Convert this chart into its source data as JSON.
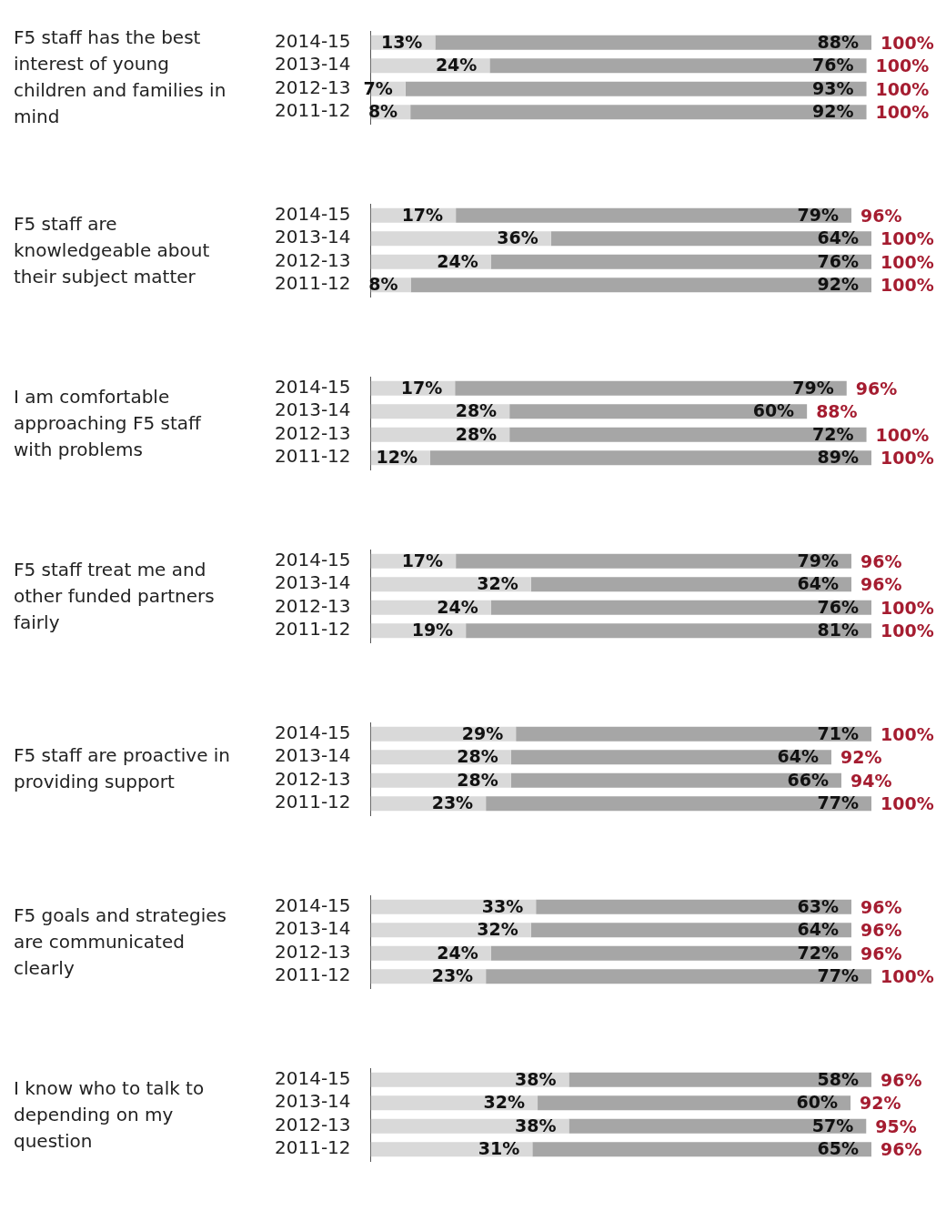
{
  "chart_data": [
    {
      "type": "bar",
      "orientation": "horizontal",
      "stacked": true,
      "title": "F5 staff has the best interest of young children and families in mind",
      "categories": [
        "2014-15",
        "2013-14",
        "2012-13",
        "2011-12"
      ],
      "tick_labels": "y",
      "grid": false,
      "series": [
        {
          "color": "#d9d9d9",
          "values": [
            13,
            24,
            7,
            8
          ],
          "value_labels": [
            "13%",
            "24%",
            "7%",
            "8%"
          ]
        },
        {
          "color": "#a6a6a6",
          "values": [
            88,
            76,
            93,
            92
          ],
          "value_labels": [
            "88%",
            "76%",
            "93%",
            "92%"
          ]
        }
      ],
      "totals": [
        "100%",
        "100%",
        "100%",
        "100%"
      ]
    },
    {
      "type": "bar",
      "orientation": "horizontal",
      "stacked": true,
      "title": "F5 staff are knowledgeable about their subject matter",
      "categories": [
        "2014-15",
        "2013-14",
        "2012-13",
        "2011-12"
      ],
      "tick_labels": "y",
      "grid": false,
      "series": [
        {
          "color": "#d9d9d9",
          "values": [
            17,
            36,
            24,
            8
          ],
          "value_labels": [
            "17%",
            "36%",
            "24%",
            "8%"
          ]
        },
        {
          "color": "#a6a6a6",
          "values": [
            79,
            64,
            76,
            92
          ],
          "value_labels": [
            "79%",
            "64%",
            "76%",
            "92%"
          ]
        }
      ],
      "totals": [
        "96%",
        "100%",
        "100%",
        "100%"
      ]
    },
    {
      "type": "bar",
      "orientation": "horizontal",
      "stacked": true,
      "title": "I am comfortable approaching F5 staff with problems",
      "categories": [
        "2014-15",
        "2013-14",
        "2012-13",
        "2011-12"
      ],
      "tick_labels": "y",
      "grid": false,
      "series": [
        {
          "color": "#d9d9d9",
          "values": [
            17,
            28,
            28,
            12
          ],
          "value_labels": [
            "17%",
            "28%",
            "28%",
            "12%"
          ]
        },
        {
          "color": "#a6a6a6",
          "values": [
            79,
            60,
            72,
            89
          ],
          "value_labels": [
            "79%",
            "60%",
            "72%",
            "89%"
          ]
        }
      ],
      "totals": [
        "96%",
        "88%",
        "100%",
        "100%"
      ]
    },
    {
      "type": "bar",
      "orientation": "horizontal",
      "stacked": true,
      "title": "F5 staff treat me and other funded partners fairly",
      "categories": [
        "2014-15",
        "2013-14",
        "2012-13",
        "2011-12"
      ],
      "tick_labels": "y",
      "grid": false,
      "series": [
        {
          "color": "#d9d9d9",
          "values": [
            17,
            32,
            24,
            19
          ],
          "value_labels": [
            "17%",
            "32%",
            "24%",
            "19%"
          ]
        },
        {
          "color": "#a6a6a6",
          "values": [
            79,
            64,
            76,
            81
          ],
          "value_labels": [
            "79%",
            "64%",
            "76%",
            "81%"
          ]
        }
      ],
      "totals": [
        "96%",
        "96%",
        "100%",
        "100%"
      ]
    },
    {
      "type": "bar",
      "orientation": "horizontal",
      "stacked": true,
      "title": "F5 staff are proactive in providing support",
      "categories": [
        "2014-15",
        "2013-14",
        "2012-13",
        "2011-12"
      ],
      "tick_labels": "y",
      "grid": false,
      "series": [
        {
          "color": "#d9d9d9",
          "values": [
            29,
            28,
            28,
            23
          ],
          "value_labels": [
            "29%",
            "28%",
            "28%",
            "23%"
          ]
        },
        {
          "color": "#a6a6a6",
          "values": [
            71,
            64,
            66,
            77
          ],
          "value_labels": [
            "71%",
            "64%",
            "66%",
            "77%"
          ]
        }
      ],
      "totals": [
        "100%",
        "92%",
        "94%",
        "100%"
      ]
    },
    {
      "type": "bar",
      "orientation": "horizontal",
      "stacked": true,
      "title": "F5 goals and strategies are communicated clearly",
      "categories": [
        "2014-15",
        "2013-14",
        "2012-13",
        "2011-12"
      ],
      "tick_labels": "y",
      "grid": false,
      "series": [
        {
          "color": "#d9d9d9",
          "values": [
            33,
            32,
            24,
            23
          ],
          "value_labels": [
            "33%",
            "32%",
            "24%",
            "23%"
          ]
        },
        {
          "color": "#a6a6a6",
          "values": [
            63,
            64,
            72,
            77
          ],
          "value_labels": [
            "63%",
            "64%",
            "72%",
            "77%"
          ]
        }
      ],
      "totals": [
        "96%",
        "96%",
        "96%",
        "100%"
      ]
    },
    {
      "type": "bar",
      "orientation": "horizontal",
      "stacked": true,
      "title": "I know who to talk to depending on my question",
      "categories": [
        "2014-15",
        "2013-14",
        "2012-13",
        "2011-12"
      ],
      "tick_labels": "y",
      "grid": false,
      "series": [
        {
          "color": "#d9d9d9",
          "values": [
            38,
            32,
            38,
            31
          ],
          "value_labels": [
            "38%",
            "32%",
            "38%",
            "31%"
          ]
        },
        {
          "color": "#a6a6a6",
          "values": [
            58,
            60,
            57,
            65
          ],
          "value_labels": [
            "58%",
            "60%",
            "57%",
            "65%"
          ]
        }
      ],
      "totals": [
        "96%",
        "92%",
        "95%",
        "96%"
      ]
    }
  ]
}
